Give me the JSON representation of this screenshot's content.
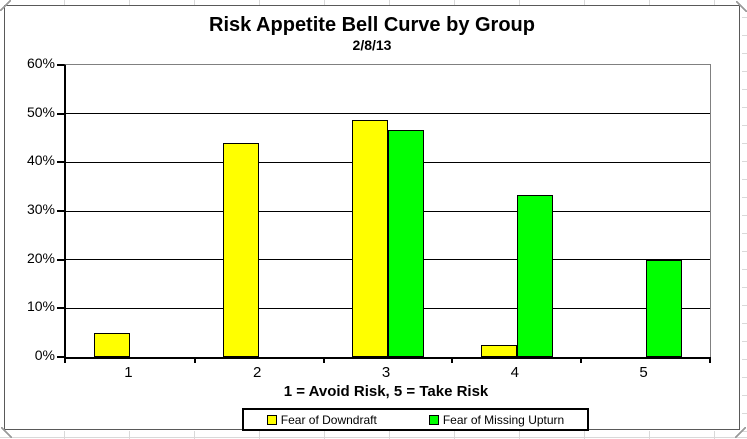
{
  "sheet": {
    "background_color": "#FFFFFF",
    "gridline_color": "#D9D9D9"
  },
  "chart": {
    "border_color": "#595959",
    "plot_border_color": "#808080",
    "gridline_color": "#000000",
    "text_color": "#000000"
  },
  "chart_data": {
    "type": "bar",
    "title": "Risk Appetite Bell Curve by Group",
    "subtitle": "2/8/13",
    "xlabel": "1 = Avoid Risk, 5 = Take Risk",
    "ylabel": "",
    "categories": [
      "1",
      "2",
      "3",
      "4",
      "5"
    ],
    "series": [
      {
        "name": "Fear of Downdraft",
        "color": "#FFFF00",
        "values": [
          4.9,
          43.9,
          48.8,
          2.4,
          0
        ]
      },
      {
        "name": "Fear of Missing Upturn",
        "color": "#00FF00",
        "values": [
          0,
          0,
          46.7,
          33.3,
          20
        ]
      }
    ],
    "ylim": [
      0,
      60
    ],
    "ytick_labels": [
      "0%",
      "10%",
      "20%",
      "30%",
      "40%",
      "50%",
      "60%"
    ],
    "grid": true,
    "legend_position": "bottom-center"
  }
}
